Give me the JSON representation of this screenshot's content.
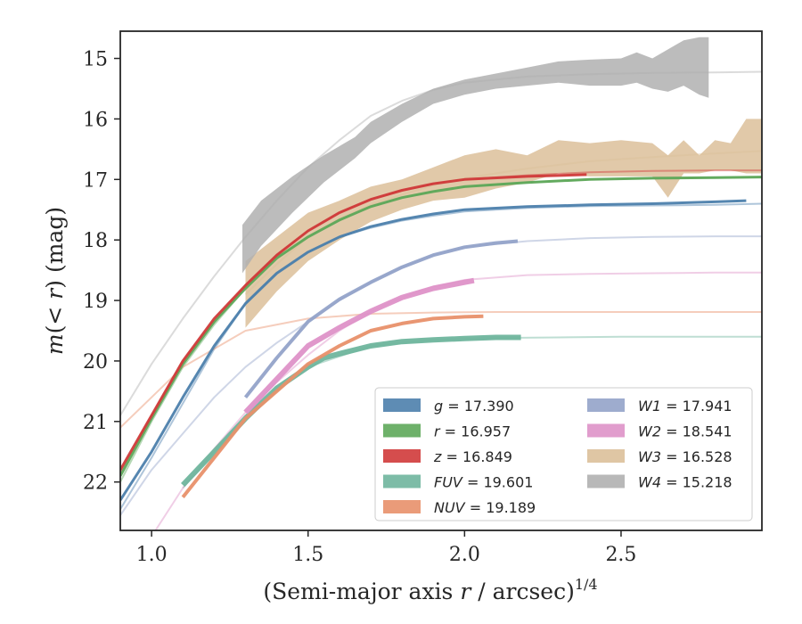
{
  "chart_data": {
    "type": "line",
    "title": "",
    "xlabel": "(Semi-major axis r / arcsec)",
    "xlabel_parts": {
      "prefix": "(Semi-major axis ",
      "var": "r",
      "suffix": " / arcsec)",
      "exponent": "1/4"
    },
    "ylabel_parts": {
      "m": "m",
      "open": "(",
      "op": "< ",
      "r": "r",
      "close": ") (mag)"
    },
    "xlim": [
      0.9,
      2.95
    ],
    "ylim": [
      22.8,
      14.55
    ],
    "y_inverted": true,
    "grid": false,
    "legend_placement": "lower-right",
    "x_ticks": [
      {
        "value": 1.0,
        "label": "1.0"
      },
      {
        "value": 1.5,
        "label": "1.5"
      },
      {
        "value": 2.0,
        "label": "2.0"
      },
      {
        "value": 2.5,
        "label": "2.5"
      }
    ],
    "y_ticks": [
      {
        "value": 15,
        "label": "15"
      },
      {
        "value": 16,
        "label": "16"
      },
      {
        "value": 17,
        "label": "17"
      },
      {
        "value": 18,
        "label": "18"
      },
      {
        "value": 19,
        "label": "19"
      },
      {
        "value": 20,
        "label": "20"
      },
      {
        "value": 21,
        "label": "21"
      },
      {
        "value": 22,
        "label": "22"
      }
    ],
    "series": [
      {
        "name": "g",
        "legend_value": "17.390",
        "color": "#4c7fac",
        "model_x": [
          0.9,
          1.0,
          1.1,
          1.2,
          1.3,
          1.4,
          1.5,
          1.6,
          1.7,
          1.8,
          1.9,
          2.0,
          2.2,
          2.4,
          2.6,
          2.8,
          2.95
        ],
        "model_y": [
          22.45,
          21.6,
          20.7,
          19.8,
          19.05,
          18.55,
          18.2,
          17.95,
          17.8,
          17.68,
          17.6,
          17.53,
          17.47,
          17.44,
          17.43,
          17.42,
          17.4
        ],
        "obs_x": [
          0.9,
          1.0,
          1.1,
          1.2,
          1.3,
          1.4,
          1.5,
          1.6,
          1.7,
          1.8,
          1.9,
          2.0,
          2.2,
          2.4,
          2.6,
          2.8,
          2.9
        ],
        "obs_y": [
          22.3,
          21.5,
          20.6,
          19.75,
          19.05,
          18.55,
          18.2,
          17.95,
          17.78,
          17.66,
          17.57,
          17.5,
          17.45,
          17.42,
          17.4,
          17.37,
          17.35
        ],
        "obs_width": 3
      },
      {
        "name": "r",
        "legend_value": "16.957",
        "color": "#5ea85a",
        "model_x": [
          0.9,
          1.0,
          1.1,
          1.2,
          1.3,
          1.4,
          1.5,
          1.6,
          1.7,
          1.8,
          1.9,
          2.0,
          2.2,
          2.4,
          2.6,
          2.8,
          2.95
        ],
        "model_y": [
          22.0,
          21.0,
          20.1,
          19.4,
          18.8,
          18.3,
          17.95,
          17.68,
          17.45,
          17.3,
          17.2,
          17.12,
          17.05,
          17.0,
          16.98,
          16.97,
          16.96
        ],
        "obs_x": [
          0.9,
          1.0,
          1.1,
          1.2,
          1.3,
          1.4,
          1.5,
          1.6,
          1.7,
          1.8,
          1.9,
          2.0,
          2.2,
          2.4,
          2.6,
          2.8,
          2.95
        ],
        "obs_y": [
          21.9,
          20.95,
          20.05,
          19.35,
          18.8,
          18.3,
          17.95,
          17.67,
          17.45,
          17.3,
          17.2,
          17.12,
          17.05,
          17.0,
          16.98,
          16.97,
          16.96
        ],
        "obs_width": 3
      },
      {
        "name": "z",
        "legend_value": "16.849",
        "color": "#d03a3a",
        "model_x": [
          0.9,
          1.0,
          1.1,
          1.2,
          1.3,
          1.4,
          1.5,
          1.6,
          1.7,
          1.8,
          1.9,
          2.0,
          2.2,
          2.4,
          2.6,
          2.8,
          2.95
        ],
        "model_y": [
          21.85,
          20.9,
          20.0,
          19.35,
          18.75,
          18.25,
          17.85,
          17.55,
          17.33,
          17.18,
          17.07,
          17.0,
          16.93,
          16.88,
          16.86,
          16.85,
          16.85
        ],
        "obs_x": [
          0.9,
          1.0,
          1.1,
          1.2,
          1.3,
          1.4,
          1.5,
          1.6,
          1.7,
          1.8,
          1.9,
          2.0,
          2.2,
          2.39
        ],
        "obs_y": [
          21.8,
          20.9,
          20.0,
          19.3,
          18.75,
          18.25,
          17.85,
          17.55,
          17.33,
          17.18,
          17.07,
          17.0,
          16.95,
          16.92
        ],
        "obs_width": 3
      },
      {
        "name": "FUV",
        "legend_value": "19.601",
        "color": "#6fb59d",
        "model_x": [
          1.1,
          1.3,
          1.5,
          1.7,
          1.9,
          2.1,
          2.3,
          2.5,
          2.7,
          2.9,
          2.95
        ],
        "model_y": [
          22.1,
          20.9,
          20.1,
          19.75,
          19.65,
          19.62,
          19.61,
          19.6,
          19.6,
          19.6,
          19.6
        ],
        "obs_x": [
          1.1,
          1.2,
          1.3,
          1.4,
          1.5,
          1.55,
          1.6,
          1.7,
          1.8,
          1.9,
          2.0,
          2.1,
          2.18
        ],
        "obs_y": [
          22.05,
          21.5,
          20.95,
          20.45,
          20.1,
          19.95,
          19.88,
          19.75,
          19.68,
          19.65,
          19.63,
          19.61,
          19.61
        ],
        "obs_width": 6
      },
      {
        "name": "NUV",
        "legend_value": "19.189",
        "color": "#e8906a",
        "model_x": [
          0.9,
          1.0,
          1.1,
          1.3,
          1.5,
          1.7,
          1.9,
          2.1,
          2.3,
          2.5,
          2.7,
          2.95
        ],
        "model_y": [
          21.1,
          20.6,
          20.1,
          19.5,
          19.3,
          19.22,
          19.2,
          19.19,
          19.19,
          19.19,
          19.19,
          19.19
        ],
        "obs_x": [
          1.1,
          1.2,
          1.3,
          1.4,
          1.5,
          1.6,
          1.7,
          1.8,
          1.9,
          2.0,
          2.06
        ],
        "obs_y": [
          22.25,
          21.6,
          20.95,
          20.5,
          20.05,
          19.75,
          19.5,
          19.38,
          19.3,
          19.27,
          19.26
        ],
        "obs_width": 4
      },
      {
        "name": "W1",
        "legend_value": "17.941",
        "color": "#94a3c9",
        "model_x": [
          0.9,
          1.0,
          1.1,
          1.2,
          1.3,
          1.4,
          1.5,
          1.6,
          1.7,
          1.8,
          1.9,
          2.0,
          2.2,
          2.4,
          2.6,
          2.8,
          2.95
        ],
        "model_y": [
          22.55,
          21.8,
          21.2,
          20.6,
          20.1,
          19.7,
          19.35,
          19.0,
          18.7,
          18.45,
          18.25,
          18.12,
          18.02,
          17.97,
          17.95,
          17.94,
          17.94
        ],
        "obs_x": [
          1.3,
          1.4,
          1.5,
          1.6,
          1.7,
          1.8,
          1.9,
          2.0,
          2.1,
          2.17
        ],
        "obs_y": [
          20.6,
          19.95,
          19.35,
          18.98,
          18.7,
          18.45,
          18.25,
          18.12,
          18.05,
          18.02
        ],
        "obs_width": 4
      },
      {
        "name": "W2",
        "legend_value": "18.541",
        "color": "#de92c8",
        "model_x": [
          1.0,
          1.1,
          1.2,
          1.3,
          1.4,
          1.5,
          1.6,
          1.7,
          1.8,
          1.9,
          2.0,
          2.2,
          2.4,
          2.6,
          2.8,
          2.95
        ],
        "model_y": [
          22.9,
          22.1,
          21.45,
          20.85,
          20.35,
          19.9,
          19.5,
          19.18,
          18.95,
          18.77,
          18.66,
          18.58,
          18.56,
          18.55,
          18.54,
          18.54
        ],
        "obs_x": [
          1.3,
          1.4,
          1.5,
          1.6,
          1.7,
          1.8,
          1.9,
          2.0,
          2.03
        ],
        "obs_y": [
          20.85,
          20.3,
          19.75,
          19.45,
          19.18,
          18.95,
          18.8,
          18.7,
          18.67
        ],
        "obs_width": 6
      },
      {
        "name": "W3",
        "legend_value": "16.528",
        "color": "#dcc09a",
        "model_x": [
          1.3,
          1.4,
          1.5,
          1.6,
          1.7,
          1.8,
          1.9,
          2.0,
          2.2,
          2.4,
          2.6,
          2.8,
          2.95
        ],
        "model_y": [
          18.9,
          18.4,
          17.95,
          17.65,
          17.42,
          17.25,
          17.1,
          16.98,
          16.82,
          16.7,
          16.63,
          16.57,
          16.53
        ],
        "band_x": [
          1.3,
          1.4,
          1.5,
          1.6,
          1.7,
          1.8,
          1.9,
          2.0,
          2.1,
          2.2,
          2.3,
          2.4,
          2.5,
          2.6,
          2.65,
          2.7,
          2.75,
          2.8,
          2.85,
          2.9,
          2.95
        ],
        "band_lo": [
          18.35,
          17.95,
          17.55,
          17.35,
          17.12,
          17.0,
          16.8,
          16.6,
          16.5,
          16.6,
          16.35,
          16.4,
          16.35,
          16.4,
          16.6,
          16.35,
          16.6,
          16.35,
          16.4,
          16.0,
          16.0
        ],
        "band_hi": [
          19.45,
          18.85,
          18.35,
          18.0,
          17.7,
          17.5,
          17.35,
          17.3,
          17.15,
          17.05,
          16.9,
          16.95,
          16.95,
          16.95,
          17.3,
          16.9,
          16.9,
          16.85,
          16.85,
          16.9,
          16.9
        ]
      },
      {
        "name": "W4",
        "legend_value": "15.218",
        "color": "#b0b0b0",
        "model_x": [
          0.9,
          1.0,
          1.1,
          1.2,
          1.3,
          1.4,
          1.5,
          1.6,
          1.7,
          1.8,
          1.9,
          2.0,
          2.2,
          2.4,
          2.6,
          2.8,
          2.95
        ],
        "model_y": [
          20.9,
          20.05,
          19.3,
          18.6,
          17.95,
          17.35,
          16.8,
          16.35,
          15.95,
          15.7,
          15.52,
          15.4,
          15.3,
          15.26,
          15.24,
          15.23,
          15.22
        ],
        "band_x": [
          1.29,
          1.35,
          1.45,
          1.55,
          1.65,
          1.7,
          1.8,
          1.9,
          2.0,
          2.1,
          2.2,
          2.3,
          2.4,
          2.5,
          2.55,
          2.6,
          2.65,
          2.7,
          2.75,
          2.78
        ],
        "band_lo": [
          17.75,
          17.35,
          16.95,
          16.6,
          16.3,
          16.05,
          15.75,
          15.5,
          15.35,
          15.25,
          15.15,
          15.05,
          15.02,
          15.0,
          14.9,
          15.0,
          14.85,
          14.7,
          14.65,
          14.65
        ],
        "band_hi": [
          18.55,
          18.1,
          17.55,
          17.05,
          16.65,
          16.4,
          16.05,
          15.75,
          15.6,
          15.5,
          15.45,
          15.4,
          15.45,
          15.45,
          15.4,
          15.5,
          15.55,
          15.45,
          15.6,
          15.65
        ]
      }
    ]
  }
}
